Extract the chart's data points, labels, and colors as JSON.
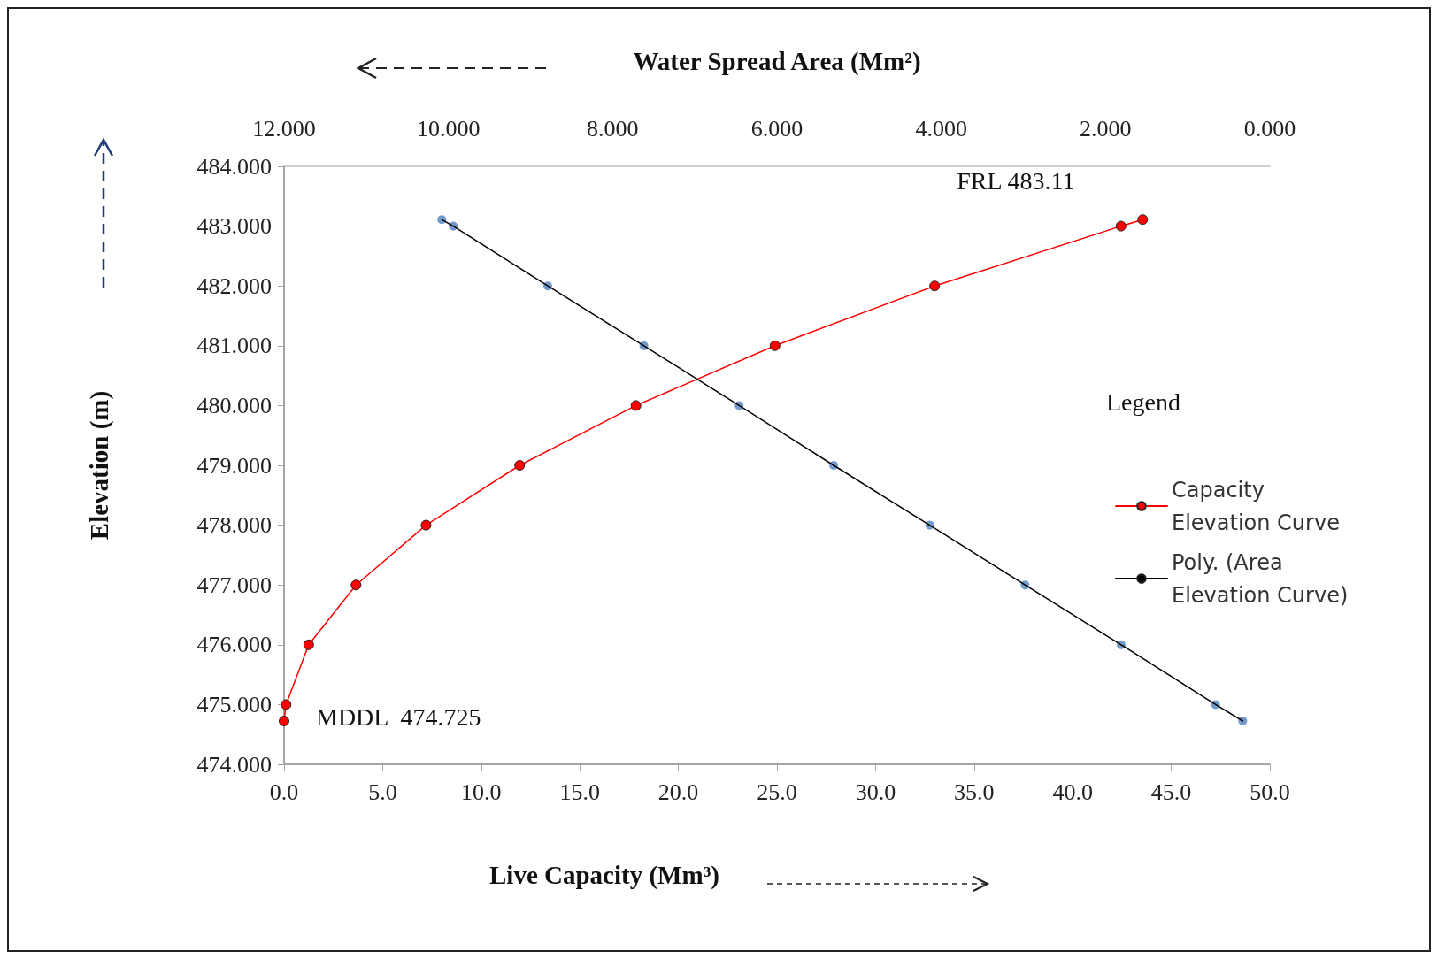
{
  "chart_data": {
    "type": "line",
    "xlabel": "Live Capacity (Mm³)",
    "x2label": "Water Spread Area (Mm²)",
    "ylabel": "Elevation (m)",
    "legend_title": "Legend",
    "xlim": [
      0,
      50
    ],
    "xticks": [
      {
        "value": 0,
        "label": "0.0"
      },
      {
        "value": 5,
        "label": "5.0"
      },
      {
        "value": 10,
        "label": "10.0"
      },
      {
        "value": 15,
        "label": "15.0"
      },
      {
        "value": 20,
        "label": "20.0"
      },
      {
        "value": 25,
        "label": "25.0"
      },
      {
        "value": 30,
        "label": "30.0"
      },
      {
        "value": 35,
        "label": "35.0"
      },
      {
        "value": 40,
        "label": "40.0"
      },
      {
        "value": 45,
        "label": "45.0"
      },
      {
        "value": 50,
        "label": "50.0"
      }
    ],
    "x2lim": [
      12,
      0
    ],
    "x2ticks": [
      {
        "value": 12,
        "label": "12.000"
      },
      {
        "value": 10,
        "label": "10.000"
      },
      {
        "value": 8,
        "label": "8.000"
      },
      {
        "value": 6,
        "label": "6.000"
      },
      {
        "value": 4,
        "label": "4.000"
      },
      {
        "value": 2,
        "label": "2.000"
      },
      {
        "value": 0,
        "label": "0.000"
      }
    ],
    "ylim": [
      474,
      484
    ],
    "yticks": [
      {
        "value": 474,
        "label": "474.000"
      },
      {
        "value": 475,
        "label": "475.000"
      },
      {
        "value": 476,
        "label": "476.000"
      },
      {
        "value": 477,
        "label": "477.000"
      },
      {
        "value": 478,
        "label": "478.000"
      },
      {
        "value": 479,
        "label": "479.000"
      },
      {
        "value": 480,
        "label": "480.000"
      },
      {
        "value": 481,
        "label": "481.000"
      },
      {
        "value": 482,
        "label": "482.000"
      },
      {
        "value": 483,
        "label": "483.000"
      },
      {
        "value": 484,
        "label": "484.000"
      }
    ],
    "grid": false,
    "legend": "right",
    "annotations": [
      {
        "text": "FRL 483.11",
        "x": 43.55,
        "y": 483.11
      },
      {
        "text": "MDDL  474.725",
        "x": 0,
        "y": 474.725
      }
    ],
    "series": [
      {
        "name": "Capacity Elevation Curve",
        "color": "#ff0000",
        "marker": "circle",
        "x": [
          0,
          0.1,
          1.25,
          3.65,
          7.2,
          11.95,
          17.85,
          24.9,
          33.0,
          42.45,
          43.55
        ],
        "values": [
          474.725,
          475,
          476,
          477,
          478,
          479,
          480,
          481,
          482,
          483,
          483.11
        ]
      },
      {
        "type": "scatter",
        "axis": "x2",
        "color": "#4f81bd",
        "marker": "circle",
        "x": [
          10.08,
          9.94,
          8.79,
          7.62,
          6.46,
          5.31,
          4.14,
          2.98,
          1.81,
          0.66,
          0.33
        ],
        "values": [
          483.11,
          483,
          482,
          481,
          480,
          479,
          478,
          477,
          476,
          475,
          474.725
        ]
      },
      {
        "name": "Poly. (Area Elevation Curve)",
        "type": "line",
        "axis": "x2",
        "color": "#000000",
        "marker": "none",
        "x": [
          10.08,
          9.94,
          8.79,
          7.62,
          6.46,
          5.31,
          4.14,
          2.98,
          1.81,
          0.66,
          0.33
        ],
        "values": [
          483.11,
          483,
          482,
          481,
          480,
          479,
          478,
          477,
          476,
          475,
          474.725
        ]
      }
    ]
  }
}
